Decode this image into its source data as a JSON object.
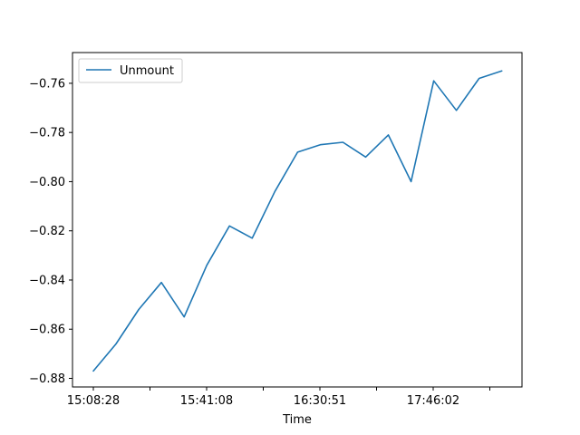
{
  "chart_data": {
    "type": "line",
    "title": "",
    "xlabel": "Time",
    "ylabel": "",
    "x_tick_labels": [
      "15:08:28",
      "",
      "15:41:08",
      "",
      "16:30:51",
      "",
      "17:46:02",
      ""
    ],
    "y_ticks": [
      -0.88,
      -0.86,
      -0.84,
      -0.82,
      -0.8,
      -0.78,
      -0.76
    ],
    "y_tick_labels": [
      "−0.88",
      "−0.86",
      "−0.84",
      "−0.82",
      "−0.80",
      "−0.78",
      "−0.76"
    ],
    "ylim": [
      -0.8835,
      -0.7475
    ],
    "grid": false,
    "legend_position": "upper-left",
    "series": [
      {
        "name": "Unmount",
        "color": "#1f77b4",
        "values": [
          -0.877,
          -0.866,
          -0.852,
          -0.841,
          -0.855,
          -0.834,
          -0.818,
          -0.823,
          -0.804,
          -0.788,
          -0.785,
          -0.784,
          -0.79,
          -0.781,
          -0.8,
          -0.759,
          -0.771,
          -0.758,
          -0.755
        ]
      }
    ]
  }
}
